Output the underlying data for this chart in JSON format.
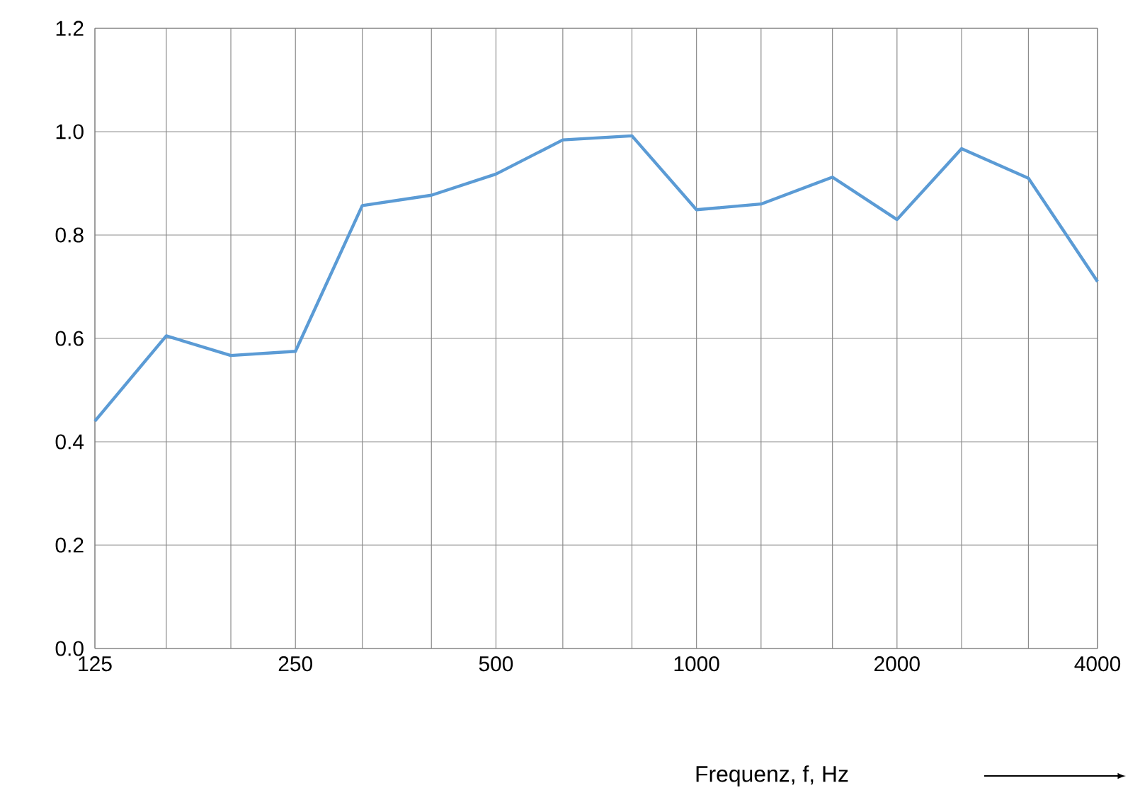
{
  "chart_data": {
    "type": "line",
    "xlabel": "Frequenz, f, Hz",
    "x": [
      125,
      160,
      200,
      250,
      315,
      400,
      500,
      630,
      800,
      1000,
      1250,
      1600,
      2000,
      2500,
      3150,
      4000
    ],
    "series": [
      {
        "color": "#5b9bd5",
        "values": [
          0.44,
          0.605,
          0.567,
          0.575,
          0.857,
          0.877,
          0.918,
          0.984,
          0.992,
          0.849,
          0.86,
          0.912,
          0.83,
          0.967,
          0.91,
          0.71
        ]
      }
    ],
    "log": "x",
    "xlim": [
      125,
      4000
    ],
    "xticks": [
      125,
      {
        "value": 160,
        "label": null
      },
      {
        "value": 200,
        "label": null
      },
      250,
      {
        "value": 315,
        "label": null
      },
      {
        "value": 400,
        "label": null
      },
      500,
      {
        "value": 630,
        "label": null
      },
      {
        "value": 800,
        "label": null
      },
      1000,
      {
        "value": 1250,
        "label": null
      },
      {
        "value": 1600,
        "label": null
      },
      2000,
      {
        "value": 2500,
        "label": null
      },
      {
        "value": 3150,
        "label": null
      },
      4000
    ],
    "ylim": [
      0,
      1.2
    ],
    "yticks": [
      {
        "value": 0,
        "label": "0.0"
      },
      {
        "value": 0.2,
        "label": "0.2"
      },
      {
        "value": 0.4,
        "label": "0.4"
      },
      {
        "value": 0.6,
        "label": "0.6"
      },
      {
        "value": 0.8,
        "label": "0.8"
      },
      {
        "value": 1.0,
        "label": "1.0"
      },
      {
        "value": 1.2,
        "label": "1.2"
      }
    ],
    "grid": true,
    "marker": "none",
    "line_style": "solid"
  }
}
